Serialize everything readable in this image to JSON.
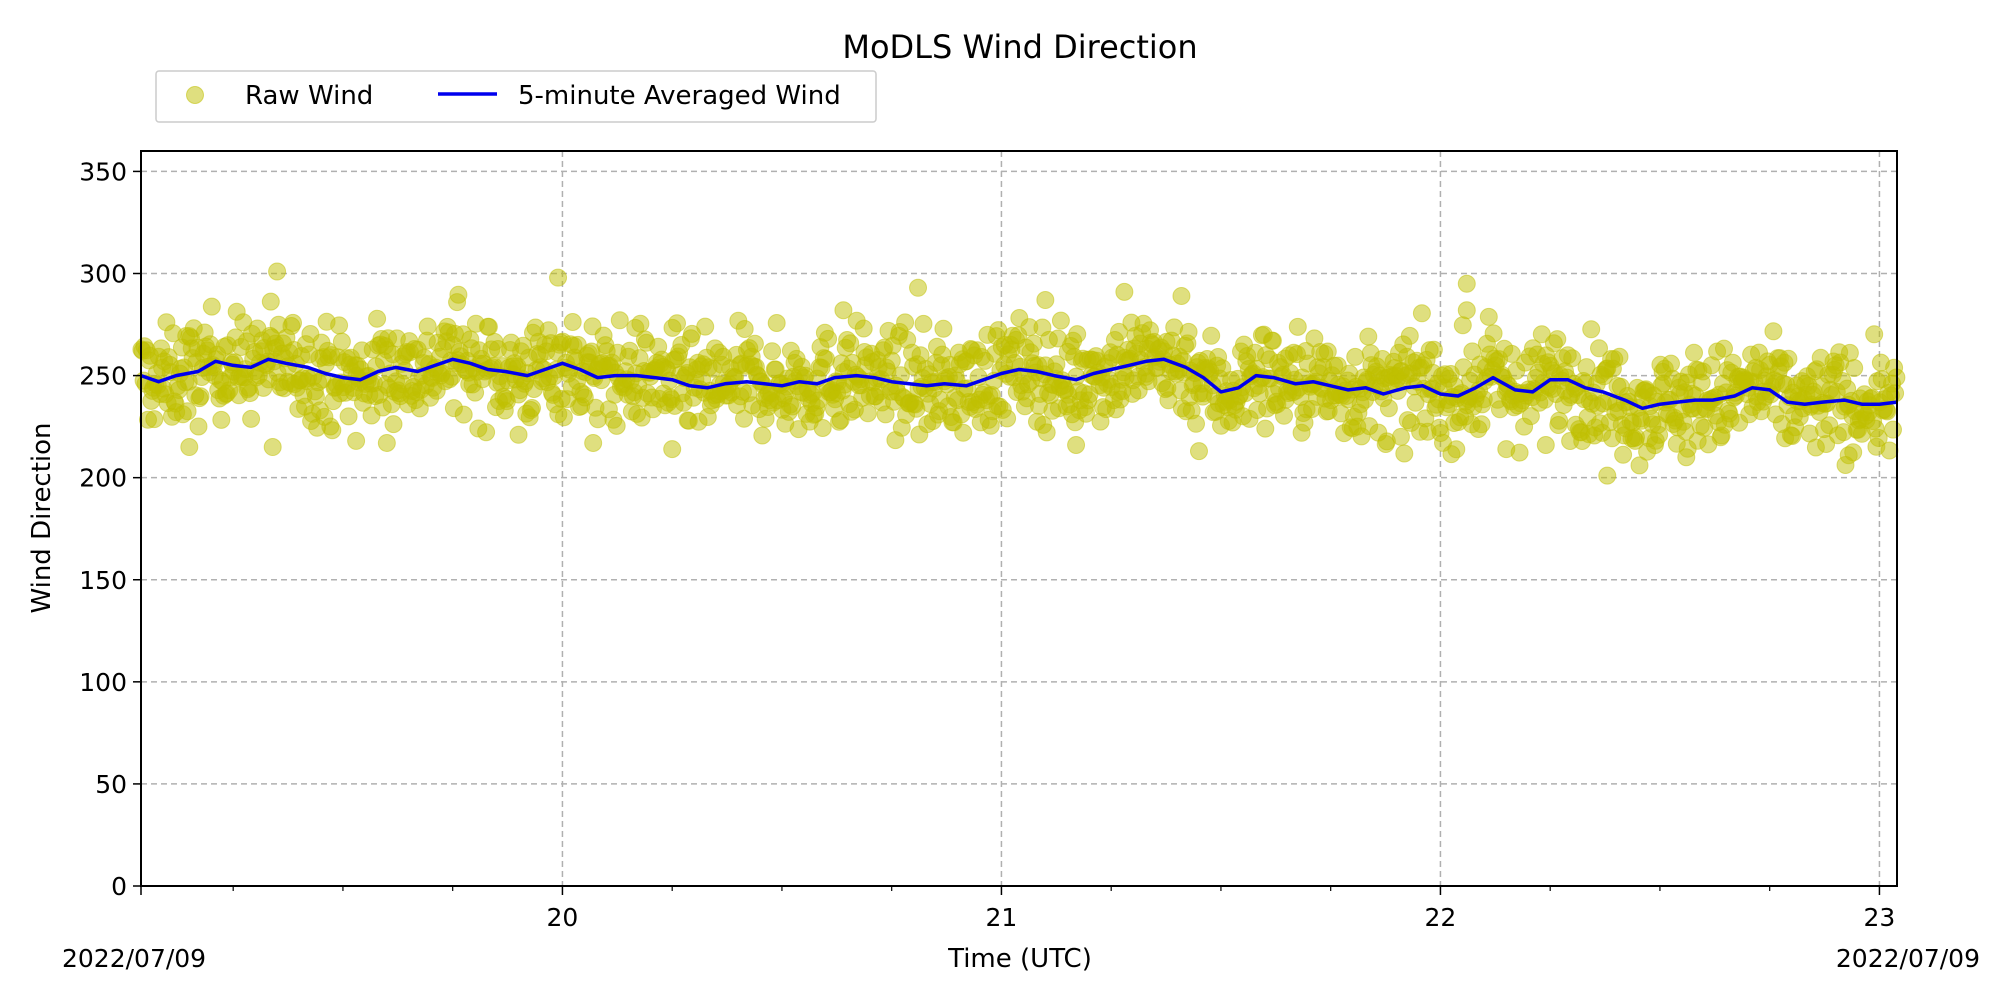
{
  "chart_data": {
    "type": "scatter",
    "title": "MoDLS Wind Direction",
    "xlabel": "Time (UTC)",
    "ylabel": "Wind Direction",
    "x_unit": "hour (UTC)",
    "xlim": [
      19.04,
      23.04
    ],
    "ylim": [
      0,
      360
    ],
    "x_ticks": [
      20,
      21,
      22,
      23
    ],
    "x_tick_labels": [
      "20",
      "21",
      "22",
      "23"
    ],
    "x_minor_ticks": [
      19.25,
      19.5,
      19.75,
      20.25,
      20.5,
      20.75,
      21.25,
      21.5,
      21.75,
      22.25,
      22.5,
      22.75
    ],
    "y_ticks": [
      0,
      50,
      100,
      150,
      200,
      250,
      300,
      350
    ],
    "y_tick_labels": [
      "0",
      "50",
      "100",
      "150",
      "200",
      "250",
      "300",
      "350"
    ],
    "date_left": "2022/07/09",
    "date_right": "2022/07/09",
    "grid": true,
    "grid_style": "dashed",
    "legend_placement": "top-left, outside above axes",
    "series": [
      {
        "name": "Raw Wind",
        "kind": "scatter",
        "color": "#bfbf00",
        "spread_band": 22,
        "outliers": [
          [
            19.35,
            301
          ],
          [
            19.99,
            298
          ],
          [
            20.81,
            293
          ],
          [
            22.06,
            295
          ],
          [
            22.06,
            282
          ],
          [
            21.28,
            291
          ],
          [
            21.41,
            289
          ],
          [
            21.1,
            287
          ],
          [
            19.76,
            286
          ],
          [
            20.64,
            282
          ],
          [
            19.34,
            215
          ],
          [
            19.15,
            215
          ],
          [
            19.53,
            218
          ],
          [
            20.07,
            217
          ],
          [
            21.17,
            216
          ],
          [
            22.38,
            201
          ],
          [
            22.56,
            210
          ],
          [
            22.93,
            211
          ],
          [
            22.15,
            214
          ],
          [
            21.45,
            213
          ],
          [
            19.9,
            221
          ],
          [
            21.91,
            220
          ],
          [
            22.24,
            216
          ],
          [
            19.6,
            217
          ],
          [
            20.25,
            214
          ]
        ]
      },
      {
        "name": "5-minute Averaged Wind",
        "kind": "line",
        "color": "#0000ee",
        "x": [
          19.04,
          19.08,
          19.12,
          19.17,
          19.21,
          19.25,
          19.29,
          19.33,
          19.37,
          19.42,
          19.46,
          19.5,
          19.54,
          19.58,
          19.62,
          19.67,
          19.71,
          19.75,
          19.79,
          19.83,
          19.87,
          19.92,
          19.96,
          20.0,
          20.04,
          20.08,
          20.12,
          20.17,
          20.21,
          20.25,
          20.29,
          20.33,
          20.37,
          20.42,
          20.46,
          20.5,
          20.54,
          20.58,
          20.62,
          20.67,
          20.71,
          20.75,
          20.79,
          20.83,
          20.87,
          20.92,
          20.96,
          21.0,
          21.04,
          21.08,
          21.12,
          21.17,
          21.21,
          21.25,
          21.29,
          21.33,
          21.37,
          21.42,
          21.46,
          21.5,
          21.54,
          21.58,
          21.62,
          21.67,
          21.71,
          21.75,
          21.79,
          21.83,
          21.87,
          21.92,
          21.96,
          22.0,
          22.04,
          22.08,
          22.12,
          22.17,
          22.21,
          22.25,
          22.29,
          22.33,
          22.37,
          22.42,
          22.46,
          22.5,
          22.54,
          22.58,
          22.62,
          22.67,
          22.71,
          22.75,
          22.79,
          22.83,
          22.87,
          22.92,
          22.96,
          23.0,
          23.04
        ],
        "y": [
          250,
          247,
          250,
          252,
          257,
          255,
          254,
          258,
          256,
          254,
          251,
          249,
          248,
          252,
          254,
          252,
          255,
          258,
          256,
          253,
          252,
          250,
          253,
          256,
          253,
          249,
          250,
          250,
          249,
          248,
          245,
          244,
          246,
          247,
          246,
          245,
          247,
          246,
          249,
          250,
          249,
          247,
          246,
          245,
          246,
          245,
          248,
          251,
          253,
          252,
          250,
          248,
          251,
          253,
          255,
          257,
          258,
          254,
          249,
          242,
          244,
          250,
          249,
          246,
          247,
          245,
          243,
          244,
          241,
          244,
          245,
          241,
          240,
          244,
          249,
          243,
          242,
          248,
          248,
          244,
          242,
          238,
          234,
          236,
          237,
          238,
          238,
          240,
          244,
          243,
          237,
          236,
          237,
          238,
          236,
          236,
          237
        ]
      }
    ]
  }
}
